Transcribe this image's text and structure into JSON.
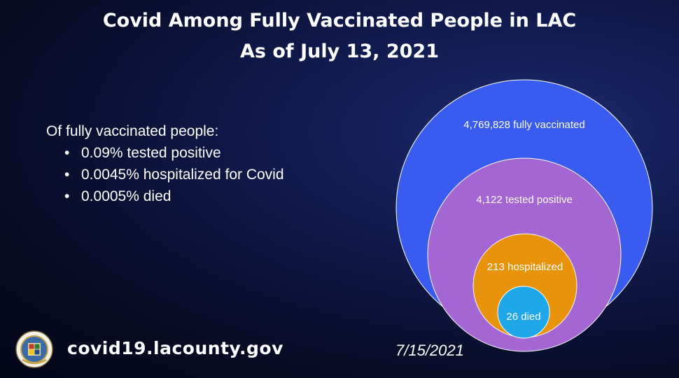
{
  "title": {
    "line1": "Covid Among Fully Vaccinated People in LAC",
    "line2": "As of July 13, 2021"
  },
  "stats": {
    "heading": "Of fully vaccinated people:",
    "items": [
      "0.09% tested positive",
      "0.0045% hospitalized for Covid",
      "0.0005% died"
    ]
  },
  "chart_data": {
    "type": "nested-bubble",
    "series": [
      {
        "value": 4769828,
        "label": "4,769,828 fully vaccinated",
        "color": "#3a5bef"
      },
      {
        "value": 4122,
        "label": "4,122 tested positive",
        "color": "#a466d2"
      },
      {
        "value": 213,
        "label": "213 hospitalized",
        "color": "#e8930c"
      },
      {
        "value": 26,
        "label": "26 died",
        "color": "#1ea8ea"
      }
    ]
  },
  "footer": {
    "seal_icon": "la-county-seal-icon",
    "seal_text": "COUNTY OF LOS ANGELES CALIFORNIA",
    "website": "covid19.lacounty.gov",
    "date": "7/15/2021"
  }
}
